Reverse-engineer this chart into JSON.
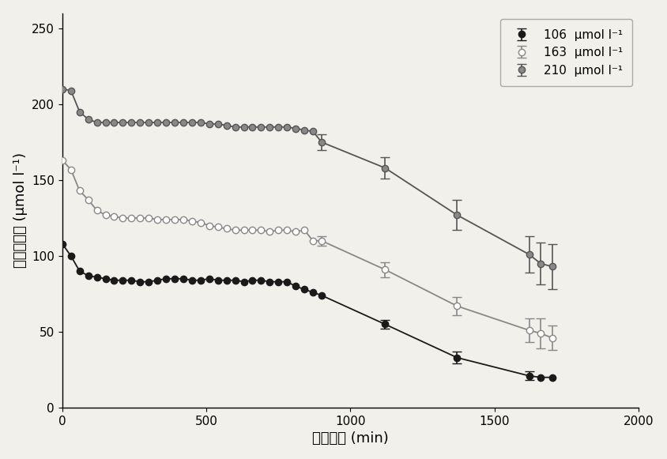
{
  "series": [
    {
      "label": "106  μmol l⁻¹",
      "color": "#1a1a1a",
      "marker": "o",
      "marker_face": "#1a1a1a",
      "marker_edge": "#1a1a1a",
      "x": [
        0,
        30,
        60,
        90,
        120,
        150,
        180,
        210,
        240,
        270,
        300,
        330,
        360,
        390,
        420,
        450,
        480,
        510,
        540,
        570,
        600,
        630,
        660,
        690,
        720,
        750,
        780,
        810,
        840,
        870,
        900,
        1120,
        1370,
        1620,
        1660,
        1700
      ],
      "y": [
        108,
        100,
        90,
        87,
        86,
        85,
        84,
        84,
        84,
        83,
        83,
        84,
        85,
        85,
        85,
        84,
        84,
        85,
        84,
        84,
        84,
        83,
        84,
        84,
        83,
        83,
        83,
        80,
        78,
        76,
        74,
        55,
        33,
        21,
        20,
        20
      ],
      "yerr": [
        0,
        0,
        0,
        0,
        0,
        0,
        0,
        0,
        0,
        0,
        0,
        0,
        0,
        0,
        0,
        0,
        0,
        0,
        0,
        0,
        0,
        0,
        0,
        0,
        0,
        0,
        0,
        0,
        0,
        0,
        0,
        3,
        4,
        3,
        0,
        0
      ]
    },
    {
      "label": "163  μmol l⁻¹",
      "color": "#888888",
      "marker": "o",
      "marker_face": "#ffffff",
      "marker_edge": "#888888",
      "x": [
        0,
        30,
        60,
        90,
        120,
        150,
        180,
        210,
        240,
        270,
        300,
        330,
        360,
        390,
        420,
        450,
        480,
        510,
        540,
        570,
        600,
        630,
        660,
        690,
        720,
        750,
        780,
        810,
        840,
        870,
        900,
        1120,
        1370,
        1620,
        1660,
        1700
      ],
      "y": [
        163,
        157,
        143,
        137,
        130,
        127,
        126,
        125,
        125,
        125,
        125,
        124,
        124,
        124,
        124,
        123,
        122,
        120,
        119,
        118,
        117,
        117,
        117,
        117,
        116,
        117,
        117,
        116,
        117,
        110,
        110,
        91,
        67,
        51,
        49,
        46
      ],
      "yerr": [
        0,
        0,
        0,
        0,
        0,
        0,
        0,
        0,
        0,
        0,
        0,
        0,
        0,
        0,
        0,
        0,
        0,
        0,
        0,
        0,
        0,
        0,
        0,
        0,
        0,
        0,
        0,
        0,
        0,
        0,
        3,
        5,
        6,
        8,
        10,
        8
      ]
    },
    {
      "label": "210  μmol l⁻¹",
      "color": "#555555",
      "marker": "o",
      "marker_face": "#888888",
      "marker_edge": "#555555",
      "x": [
        0,
        30,
        60,
        90,
        120,
        150,
        180,
        210,
        240,
        270,
        300,
        330,
        360,
        390,
        420,
        450,
        480,
        510,
        540,
        570,
        600,
        630,
        660,
        690,
        720,
        750,
        780,
        810,
        840,
        870,
        900,
        1120,
        1370,
        1620,
        1660,
        1700
      ],
      "y": [
        210,
        209,
        195,
        190,
        188,
        188,
        188,
        188,
        188,
        188,
        188,
        188,
        188,
        188,
        188,
        188,
        188,
        187,
        187,
        186,
        185,
        185,
        185,
        185,
        185,
        185,
        185,
        184,
        183,
        182,
        175,
        158,
        127,
        101,
        95,
        93
      ],
      "yerr": [
        0,
        0,
        0,
        0,
        0,
        0,
        0,
        0,
        0,
        0,
        0,
        0,
        0,
        0,
        0,
        0,
        0,
        0,
        0,
        0,
        0,
        0,
        0,
        0,
        0,
        0,
        0,
        0,
        0,
        0,
        5,
        7,
        10,
        12,
        14,
        15
      ]
    }
  ],
  "xlabel": "耗竭时间 (min)",
  "ylabel": "耗竭液浓度 (μmol l⁻¹)",
  "xlim": [
    0,
    2000
  ],
  "ylim": [
    0,
    260
  ],
  "xticks": [
    0,
    500,
    1000,
    1500,
    2000
  ],
  "yticks": [
    0,
    50,
    100,
    150,
    200,
    250
  ],
  "background_color": "#f2f0eb",
  "legend_loc": "upper right"
}
